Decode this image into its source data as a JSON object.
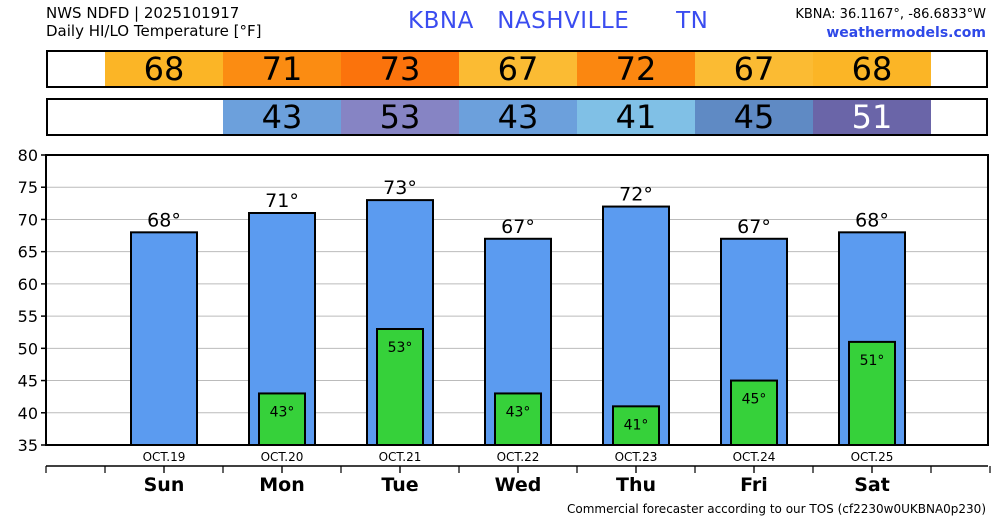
{
  "header": {
    "line1": "NWS NDFD | 2025101917",
    "line2": "Daily HI/LO Temperature [°F]",
    "station": "KBNA   NASHVILLE      TN",
    "coords": "KBNA: 36.1167°, -86.6833°W",
    "site": "weathermodels.com"
  },
  "footer": "Commercial forecaster according to our TOS (cf2230w0UKBNA0p230)",
  "colors": {
    "high_bar": "#5b9bf0",
    "low_bar": "#36d13a",
    "strip_hi": {
      "68": "#fbb526",
      "71": "#fb8c12",
      "73": "#fb730c",
      "67": "#fbbb33",
      "72": "#fb8710"
    },
    "strip_lo": {
      "43": "#6ca0dc",
      "53": "#8684c4",
      "41": "#80c0e6",
      "45": "#5f8ac4",
      "51": "#6a65a8"
    }
  },
  "strips": {
    "high": [
      "68",
      "71",
      "73",
      "67",
      "72",
      "67",
      "68"
    ],
    "low": [
      "",
      "43",
      "53",
      "43",
      "41",
      "45",
      "51"
    ]
  },
  "chart_data": {
    "type": "bar",
    "categories": [
      "Sun",
      "Mon",
      "Tue",
      "Wed",
      "Thu",
      "Fri",
      "Sat"
    ],
    "dates": [
      "OCT.19",
      "OCT.20",
      "OCT.21",
      "OCT.22",
      "OCT.23",
      "OCT.24",
      "OCT.25"
    ],
    "series": [
      {
        "values": [
          68,
          71,
          73,
          67,
          72,
          67,
          68
        ],
        "labels": [
          "68°",
          "71°",
          "73°",
          "67°",
          "72°",
          "67°",
          "68°"
        ]
      },
      {
        "values": [
          null,
          43,
          53,
          43,
          41,
          45,
          51
        ],
        "labels": [
          "",
          "43°",
          "53°",
          "43°",
          "41°",
          "45°",
          "51°"
        ]
      }
    ],
    "ylim": [
      35,
      80
    ],
    "yticks": [
      "35",
      "40",
      "45",
      "50",
      "55",
      "60",
      "65",
      "70",
      "75",
      "80"
    ],
    "grid": true
  }
}
